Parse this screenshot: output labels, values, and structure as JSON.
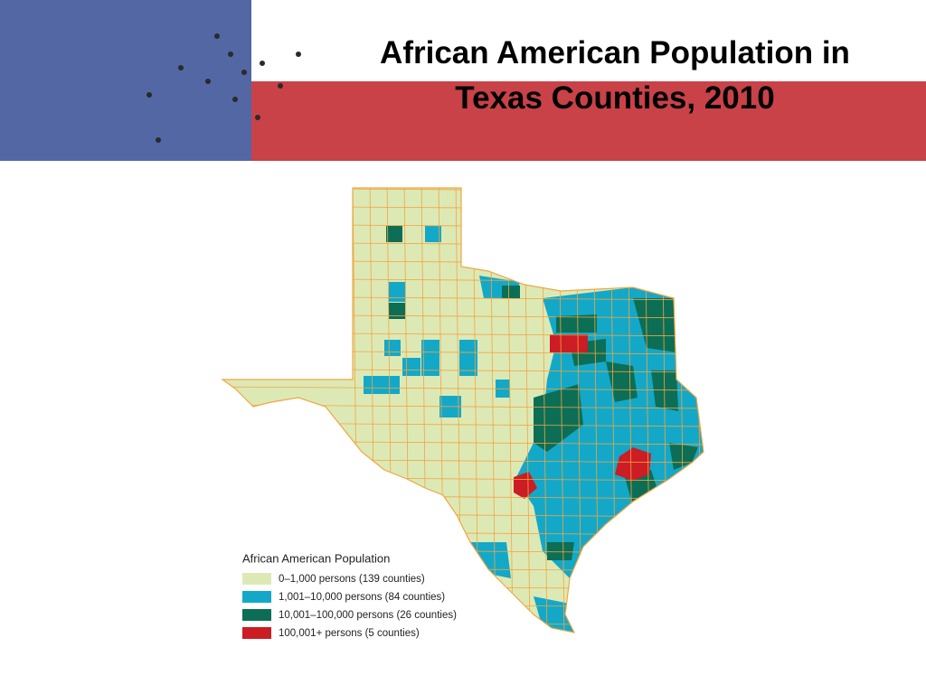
{
  "header": {
    "title_lines": [
      "African American Population in",
      "Texas Counties, 2010"
    ]
  },
  "legend": {
    "title": "African American Population",
    "items": [
      {
        "label": "0–1,000 persons (139 counties)",
        "color": "#dde9b5"
      },
      {
        "label": "1,001–10,000 persons (84 counties)",
        "color": "#13a8c8"
      },
      {
        "label": "10,001–100,000 persons (26 counties)",
        "color": "#0c6e55"
      },
      {
        "label": "100,001+ persons (5 counties)",
        "color": "#cc1c24"
      }
    ]
  }
}
